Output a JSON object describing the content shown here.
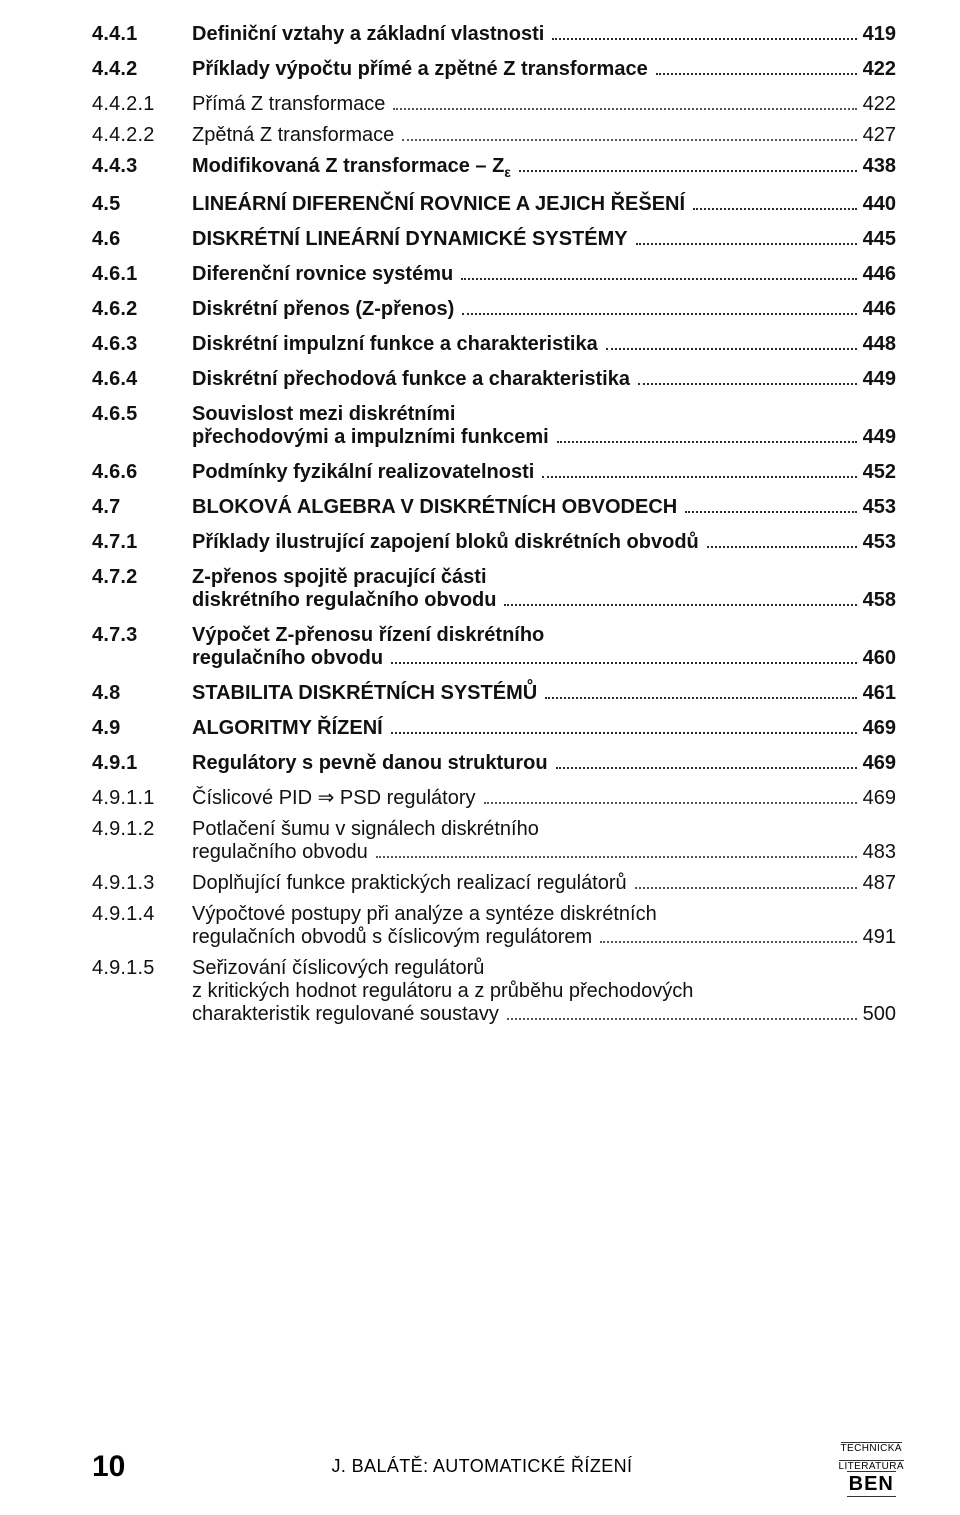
{
  "toc": [
    {
      "num": "4.4.1",
      "lines": [
        "Definiční vztahy a základní vlastnosti"
      ],
      "page": "419",
      "style": "bold"
    },
    {
      "num": "4.4.2",
      "lines": [
        "Příklady výpočtu přímé a zpětné Z transformace"
      ],
      "page": "422",
      "style": "bold"
    },
    {
      "num": "4.4.2.1",
      "lines": [
        "Přímá Z transformace"
      ],
      "page": "422",
      "style": "plain"
    },
    {
      "num": "4.4.2.2",
      "lines": [
        "Zpětná Z transformace"
      ],
      "page": "427",
      "style": "plain"
    },
    {
      "num": "4.4.3",
      "lines": [
        "Modifikovaná Z transformace – Z<sub>ε</sub>"
      ],
      "page": "438",
      "style": "bold"
    },
    {
      "num": "4.5",
      "lines": [
        "LINEÁRNÍ DIFERENČNÍ ROVNICE A JEJICH ŘEŠENÍ"
      ],
      "page": "440",
      "style": "bold"
    },
    {
      "num": "4.6",
      "lines": [
        "DISKRÉTNÍ LINEÁRNÍ DYNAMICKÉ SYSTÉMY"
      ],
      "page": "445",
      "style": "bold"
    },
    {
      "num": "4.6.1",
      "lines": [
        "Diferenční rovnice systému"
      ],
      "page": "446",
      "style": "bold"
    },
    {
      "num": "4.6.2",
      "lines": [
        "Diskrétní přenos (Z-přenos)"
      ],
      "page": "446",
      "style": "bold"
    },
    {
      "num": "4.6.3",
      "lines": [
        "Diskrétní impulzní funkce a charakteristika"
      ],
      "page": "448",
      "style": "bold"
    },
    {
      "num": "4.6.4",
      "lines": [
        "Diskrétní přechodová funkce a charakteristika"
      ],
      "page": "449",
      "style": "bold"
    },
    {
      "num": "4.6.5",
      "lines": [
        "Souvislost mezi diskrétními",
        "přechodovými a impulzními funkcemi"
      ],
      "page": "449",
      "style": "bold"
    },
    {
      "num": "4.6.6",
      "lines": [
        "Podmínky fyzikální realizovatelnosti"
      ],
      "page": "452",
      "style": "bold"
    },
    {
      "num": "4.7",
      "lines": [
        "BLOKOVÁ ALGEBRA V DISKRÉTNÍCH OBVODECH"
      ],
      "page": "453",
      "style": "bold"
    },
    {
      "num": "4.7.1",
      "lines": [
        "Příklady ilustrující zapojení bloků diskrétních obvodů"
      ],
      "page": "453",
      "style": "bold"
    },
    {
      "num": "4.7.2",
      "lines": [
        "Z-přenos spojitě pracující části",
        "diskrétního regulačního obvodu"
      ],
      "page": "458",
      "style": "bold"
    },
    {
      "num": "4.7.3",
      "lines": [
        "Výpočet Z-přenosu řízení diskrétního",
        "regulačního obvodu"
      ],
      "page": "460",
      "style": "bold"
    },
    {
      "num": "4.8",
      "lines": [
        "STABILITA DISKRÉTNÍCH SYSTÉMŮ"
      ],
      "page": "461",
      "style": "bold"
    },
    {
      "num": "4.9",
      "lines": [
        "ALGORITMY ŘÍZENÍ"
      ],
      "page": "469",
      "style": "bold"
    },
    {
      "num": "4.9.1",
      "lines": [
        "Regulátory s pevně danou strukturou"
      ],
      "page": "469",
      "style": "bold"
    },
    {
      "num": "4.9.1.1",
      "lines": [
        "Číslicové PID ⇒ PSD regulátory"
      ],
      "page": "469",
      "style": "plain"
    },
    {
      "num": "4.9.1.2",
      "lines": [
        "Potlačení šumu v signálech diskrétního",
        "regulačního obvodu"
      ],
      "page": "483",
      "style": "plain"
    },
    {
      "num": "4.9.1.3",
      "lines": [
        "Doplňující funkce praktických realizací regulátorů"
      ],
      "page": "487",
      "style": "plain"
    },
    {
      "num": "4.9.1.4",
      "lines": [
        "Výpočtové postupy při analýze a syntéze diskrétních",
        "regulačních obvodů s číslicovým regulátorem"
      ],
      "page": "491",
      "style": "plain"
    },
    {
      "num": "4.9.1.5",
      "lines": [
        "Seřizování číslicových regulátorů",
        "z kritických hodnot regulátoru a z průběhu přechodových",
        "charakteristik regulované soustavy"
      ],
      "page": "500",
      "style": "plain"
    }
  ],
  "footer": {
    "page_number": "10",
    "author_line": "J. BALÁTĚ: AUTOMATICKÉ ŘÍZENÍ",
    "logo_top_line1": "TECHNICKÁ",
    "logo_top_line2": "LITERATURA",
    "logo_name": "BEN"
  }
}
